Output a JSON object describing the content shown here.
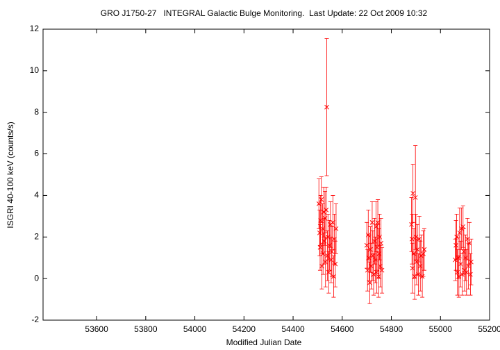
{
  "chart_data": {
    "type": "scatter",
    "title": "GRO J1750-27   INTEGRAL Galactic Bulge Monitoring.  Last Update: 22 Oct 2009 10:32",
    "x_label": "Modified Julian Date",
    "y_label": "ISGRI 40-100 keV (counts/s)",
    "color": "#ff0000",
    "xlim": [
      53382,
      55200
    ],
    "ylim": [
      -2,
      12
    ],
    "xticks": [
      53600,
      53800,
      54000,
      54200,
      54400,
      54600,
      54800,
      55000,
      55200
    ],
    "yticks": [
      -2,
      0,
      2,
      4,
      6,
      8,
      10,
      12
    ],
    "x": [
      54505,
      54508,
      54510,
      54512,
      54515,
      54517,
      54520,
      54522,
      54525,
      54527,
      54530,
      54532,
      54535,
      54537,
      54540,
      54542,
      54545,
      54548,
      54552,
      54555,
      54558,
      54562,
      54565,
      54568,
      54572,
      54575,
      54700,
      54703,
      54706,
      54709,
      54712,
      54715,
      54718,
      54722,
      54725,
      54728,
      54732,
      54735,
      54738,
      54740,
      54742,
      54745,
      54748,
      54750,
      54752,
      54755,
      54758,
      54762,
      54882,
      54884,
      54886,
      54888,
      54892,
      54895,
      54898,
      54900,
      54903,
      54906,
      54910,
      54914,
      54918,
      54922,
      54926,
      54930,
      54934,
      55060,
      55063,
      55066,
      55069,
      55072,
      55075,
      55078,
      55082,
      55085,
      55088,
      55092,
      55095,
      55098,
      55102,
      55106,
      55110,
      55114,
      55118,
      55122,
      55125
    ],
    "values": [
      3.6,
      2.2,
      1.5,
      2.8,
      3.8,
      0.6,
      2.4,
      1.2,
      3.2,
      1.8,
      2.9,
      0.8,
      3.3,
      8.25,
      1.1,
      2.0,
      0.3,
      1.6,
      2.6,
      0.9,
      1.3,
      2.7,
      0.1,
      1.9,
      0.7,
      2.4,
      1.6,
      0.4,
      2.1,
      1.0,
      -0.2,
      1.4,
      0.6,
      2.7,
      1.1,
      0.2,
      1.8,
      0.9,
      2.5,
      0.3,
      1.5,
      2.7,
      0.1,
      1.2,
      2.0,
      0.6,
      1.7,
      0.4,
      2.6,
      1.9,
      0.5,
      4.1,
      1.2,
      0.1,
      3.9,
      2.0,
      0.8,
      1.4,
      0.2,
      1.9,
      0.6,
      1.1,
      0.1,
      1.2,
      1.4,
      0.9,
      1.6,
      2.0,
      0.3,
      1.0,
      0.1,
      2.2,
      0.7,
      2.4,
      0.2,
      2.5,
      1.3,
      0.4,
      1.0,
      0.3,
      1.9,
      0.6,
      1.7,
      0.2,
      0.8
    ],
    "errors": [
      1.2,
      1.1,
      1.1,
      1.2,
      1.1,
      1.1,
      1.2,
      1.0,
      1.2,
      1.1,
      1.3,
      1.2,
      1.1,
      3.3,
      1.2,
      1.1,
      1.0,
      1.2,
      1.1,
      1.1,
      1.2,
      1.3,
      1.0,
      1.2,
      1.1,
      1.2,
      1.1,
      1.0,
      1.2,
      1.1,
      1.0,
      1.1,
      1.1,
      1.0,
      1.2,
      1.0,
      1.1,
      1.1,
      1.2,
      1.0,
      1.1,
      1.1,
      1.0,
      1.2,
      1.1,
      1.0,
      1.2,
      1.1,
      1.3,
      1.2,
      1.2,
      1.4,
      1.2,
      1.1,
      2.5,
      1.1,
      1.1,
      1.2,
      1.0,
      1.1,
      1.2,
      1.0,
      1.0,
      1.1,
      1.0,
      1.0,
      1.2,
      1.1,
      1.1,
      1.0,
      1.0,
      1.2,
      1.1,
      1.0,
      1.0,
      1.0,
      1.1,
      1.0,
      1.1,
      1.1,
      1.0,
      1.1,
      1.0,
      1.0,
      1.1
    ]
  }
}
